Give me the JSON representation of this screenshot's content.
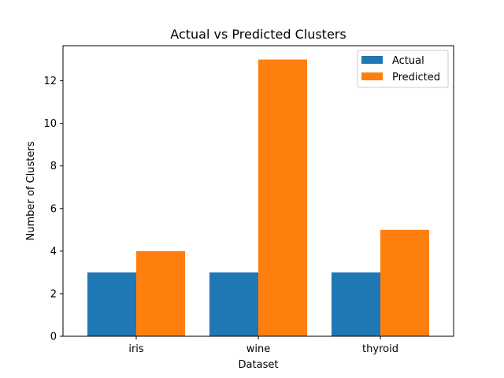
{
  "chart_data": {
    "type": "bar",
    "title": "Actual vs Predicted Clusters",
    "xlabel": "Dataset",
    "ylabel": "Number of Clusters",
    "categories": [
      "iris",
      "wine",
      "thyroid"
    ],
    "series": [
      {
        "name": "Actual",
        "values": [
          3,
          3,
          3
        ],
        "color": "#1f77b4"
      },
      {
        "name": "Predicted",
        "values": [
          4,
          13,
          5
        ],
        "color": "#ff7f0e"
      }
    ],
    "ylim": [
      0,
      13.65
    ],
    "yticks": [
      0,
      2,
      4,
      6,
      8,
      10,
      12
    ],
    "grid": false,
    "legend": "top-right"
  }
}
